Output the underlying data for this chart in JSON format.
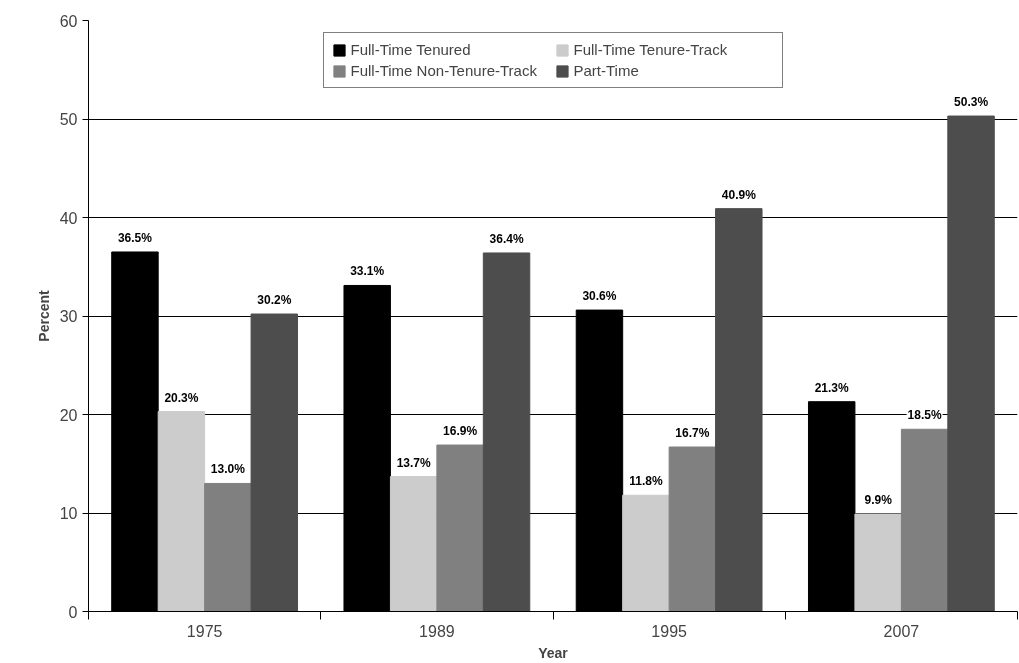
{
  "chart_data": {
    "type": "bar",
    "xlabel": "Year",
    "ylabel": "Percent",
    "categories": [
      "1975",
      "1989",
      "1995",
      "2007"
    ],
    "series": [
      {
        "name": "Full-Time Tenured",
        "color": "#000000",
        "values": [
          36.5,
          33.1,
          30.6,
          21.3
        ],
        "value_labels": [
          "36.5%",
          "33.1%",
          "30.6%",
          "21.3%"
        ]
      },
      {
        "name": "Full-Time Tenure-Track",
        "color": "#cccccc",
        "values": [
          20.3,
          13.7,
          11.8,
          9.9
        ],
        "value_labels": [
          "20.3%",
          "13.7%",
          "11.8%",
          "9.9%"
        ]
      },
      {
        "name": "Full-Time Non-Tenure-Track",
        "color": "#808080",
        "values": [
          13.0,
          16.9,
          16.7,
          18.5
        ],
        "value_labels": [
          "13.0%",
          "16.9%",
          "16.7%",
          "18.5%"
        ]
      },
      {
        "name": "Part-Time",
        "color": "#4d4d4d",
        "values": [
          30.2,
          36.4,
          40.9,
          50.3
        ],
        "value_labels": [
          "30.2%",
          "36.4%",
          "40.9%",
          "50.3%"
        ]
      }
    ],
    "ylim": [
      0,
      60
    ],
    "yticks": [
      0,
      10,
      20,
      30,
      40,
      50,
      60
    ],
    "grid": "y",
    "legend": "top"
  }
}
